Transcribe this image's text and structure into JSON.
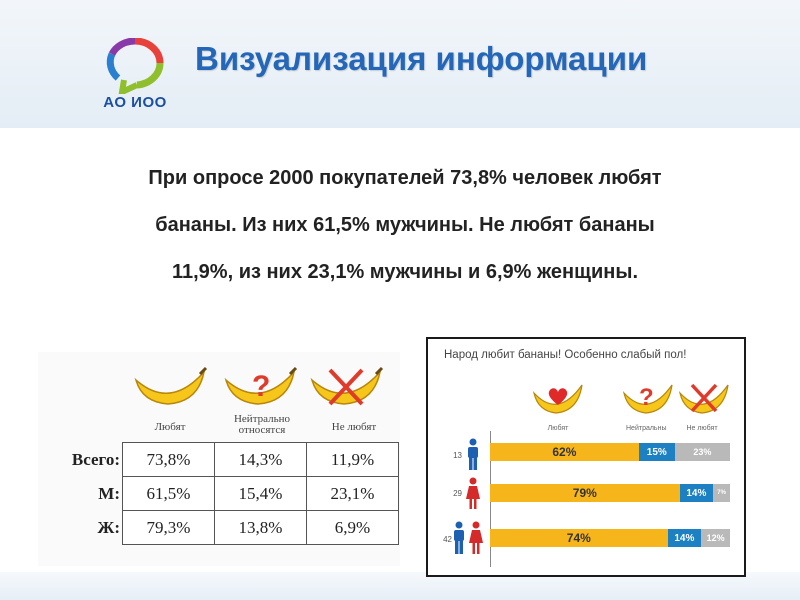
{
  "logo": {
    "text": "АО ИОО"
  },
  "title": "Визуализация информации",
  "main_text": {
    "line1": "При опросе 2000 покупателей 73,8% человек любят",
    "line2": "бананы. Из них 61,5% мужчины. Не любят бананы",
    "line3": "11,9%, из них 23,1% мужчины и 6,9% женщины."
  },
  "left_table": {
    "columns": [
      "Любят",
      "Нейтрально\nотносятся",
      "Не любят"
    ],
    "col_line2": "относятся",
    "col_line1": "Нейтрально",
    "rows": [
      {
        "label": "Всего:",
        "values": [
          "73,8%",
          "14,3%",
          "11,9%"
        ]
      },
      {
        "label": "М:",
        "values": [
          "61,5%",
          "15,4%",
          "23,1%"
        ]
      },
      {
        "label": "Ж:",
        "values": [
          "79,3%",
          "13,8%",
          "6,9%"
        ]
      }
    ]
  },
  "right_chart": {
    "title": "Народ любит бананы! Особенно слабый пол!",
    "columns": [
      "Любят",
      "Нейтральны",
      "Не любят"
    ],
    "rows": [
      {
        "count": "13",
        "like": "62%",
        "neutral": "15%",
        "dislike": "23%",
        "like_v": 62,
        "neutral_v": 15,
        "dislike_v": 23
      },
      {
        "count": "29",
        "like": "79%",
        "neutral": "14%",
        "dislike": "7%",
        "like_v": 79,
        "neutral_v": 14,
        "dislike_v": 7
      },
      {
        "count": "42",
        "like": "74%",
        "neutral": "14%",
        "dislike": "12%",
        "like_v": 74,
        "neutral_v": 14,
        "dislike_v": 12
      }
    ],
    "colors": {
      "like": "#f6b51a",
      "neutral": "#1d80c3",
      "dislike": "#b9b9b9",
      "male": "#1d5fb0",
      "female": "#d42a2a"
    }
  }
}
